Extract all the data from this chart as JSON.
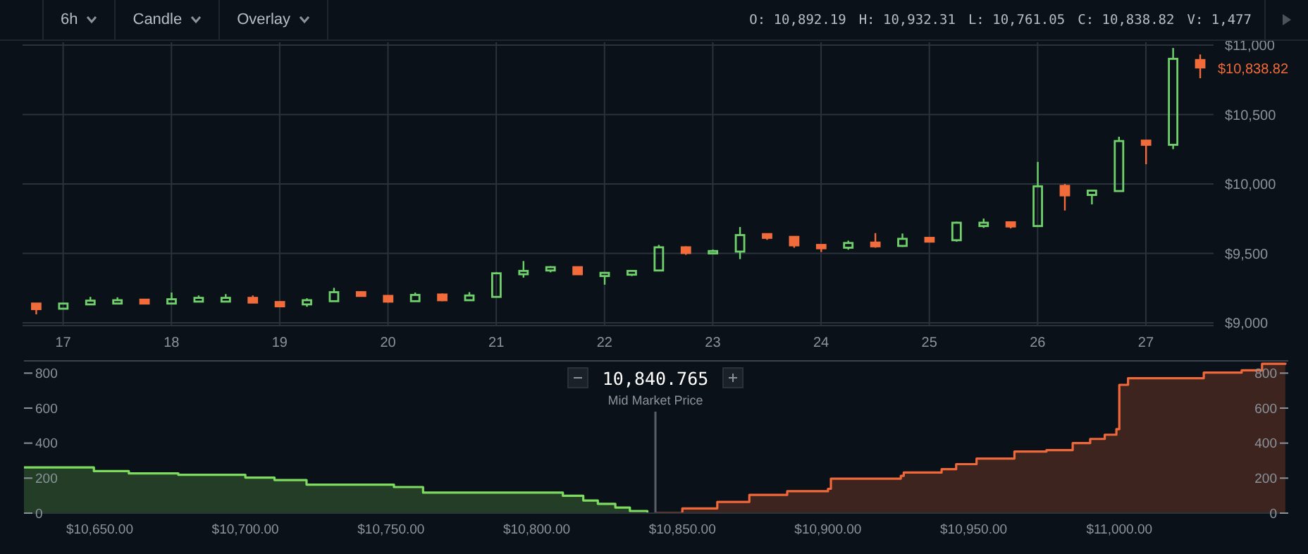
{
  "chart_data": [
    {
      "type": "candlestick",
      "categories": [
        null,
        "17",
        null,
        null,
        null,
        "18",
        null,
        null,
        null,
        "19",
        null,
        null,
        null,
        "20",
        null,
        null,
        null,
        "21",
        null,
        null,
        null,
        "22",
        null,
        null,
        null,
        "23",
        null,
        null,
        null,
        "24",
        null,
        null,
        null,
        "25",
        null,
        null,
        null,
        "26",
        null,
        null,
        null,
        "27",
        null,
        null
      ],
      "ohlc": [
        [
          9139,
          9139,
          9061,
          9099
        ],
        [
          9102,
          9139,
          9102,
          9139
        ],
        [
          9133,
          9187,
          9133,
          9160
        ],
        [
          9139,
          9184,
          9136,
          9163
        ],
        [
          9167,
          9170,
          9136,
          9139
        ],
        [
          9139,
          9218,
          9136,
          9170
        ],
        [
          9153,
          9197,
          9150,
          9180
        ],
        [
          9153,
          9207,
          9150,
          9180
        ],
        [
          9180,
          9197,
          9143,
          9146
        ],
        [
          9150,
          9153,
          9112,
          9119
        ],
        [
          9133,
          9177,
          9116,
          9163
        ],
        [
          9156,
          9252,
          9153,
          9221
        ],
        [
          9221,
          9228,
          9190,
          9194
        ],
        [
          9194,
          9197,
          9146,
          9153
        ],
        [
          9156,
          9218,
          9153,
          9201
        ],
        [
          9204,
          9211,
          9156,
          9163
        ],
        [
          9163,
          9221,
          9160,
          9197
        ],
        [
          9187,
          9364,
          9184,
          9357
        ],
        [
          9350,
          9445,
          9326,
          9374
        ],
        [
          9377,
          9408,
          9364,
          9401
        ],
        [
          9401,
          9404,
          9347,
          9350
        ],
        [
          9337,
          9364,
          9275,
          9360
        ],
        [
          9347,
          9381,
          9337,
          9374
        ],
        [
          9377,
          9561,
          9374,
          9544
        ],
        [
          9544,
          9551,
          9490,
          9503
        ],
        [
          9500,
          9527,
          9497,
          9517
        ],
        [
          9513,
          9690,
          9459,
          9632
        ],
        [
          9639,
          9642,
          9598,
          9612
        ],
        [
          9619,
          9622,
          9541,
          9558
        ],
        [
          9561,
          9564,
          9510,
          9537
        ],
        [
          9541,
          9592,
          9527,
          9575
        ],
        [
          9578,
          9646,
          9541,
          9551
        ],
        [
          9554,
          9643,
          9547,
          9605
        ],
        [
          9612,
          9615,
          9581,
          9585
        ],
        [
          9595,
          9728,
          9585,
          9721
        ],
        [
          9697,
          9751,
          9684,
          9721
        ],
        [
          9724,
          9728,
          9680,
          9694
        ],
        [
          9697,
          10159,
          9694,
          9983
        ],
        [
          9986,
          10000,
          9809,
          9918
        ],
        [
          9921,
          9955,
          9853,
          9952
        ],
        [
          9949,
          10340,
          9946,
          10309
        ],
        [
          10312,
          10316,
          10142,
          10282
        ],
        [
          10282,
          10979,
          10251,
          10901
        ],
        [
          10892.19,
          10932.31,
          10761.05,
          10838.82
        ]
      ],
      "colors": [
        "#f26b3a",
        "#6fd16b",
        "#6fd16b",
        "#6fd16b",
        "#f26b3a",
        "#6fd16b",
        "#6fd16b",
        "#6fd16b",
        "#f26b3a",
        "#f26b3a",
        "#6fd16b",
        "#6fd16b",
        "#f26b3a",
        "#f26b3a",
        "#6fd16b",
        "#f26b3a",
        "#6fd16b",
        "#6fd16b",
        "#6fd16b",
        "#6fd16b",
        "#f26b3a",
        "#6fd16b",
        "#6fd16b",
        "#6fd16b",
        "#f26b3a",
        "#6fd16b",
        "#6fd16b",
        "#f26b3a",
        "#f26b3a",
        "#f26b3a",
        "#6fd16b",
        "#f26b3a",
        "#6fd16b",
        "#f26b3a",
        "#6fd16b",
        "#6fd16b",
        "#f26b3a",
        "#6fd16b",
        "#f26b3a",
        "#6fd16b",
        "#6fd16b",
        "#f26b3a",
        "#6fd16b",
        "#f26b3a"
      ],
      "ylim": [
        8980,
        11020
      ],
      "yticks": [
        {
          "value": 9000,
          "label": "$9,000"
        },
        {
          "value": 9500,
          "label": "$9,500"
        },
        {
          "value": 10000,
          "label": "$10,000"
        },
        {
          "value": 10500,
          "label": "$10,500"
        },
        {
          "value": 11000,
          "label": "$11,000"
        }
      ],
      "grid": true,
      "annotations": [
        "6h",
        "Candle",
        "Overlay",
        "O: 10,892.19",
        "H: 10,932.31",
        "L: 10,761.05",
        "C: 10,838.82",
        "V: 1,477",
        "$10,838.82"
      ]
    },
    {
      "type": "step",
      "xlim": [
        10624,
        11058
      ],
      "xticks": [
        {
          "value": 10650,
          "label": "$10,650.00"
        },
        {
          "value": 10700,
          "label": "$10,700.00"
        },
        {
          "value": 10750,
          "label": "$10,750.00"
        },
        {
          "value": 10800,
          "label": "$10,800.00"
        },
        {
          "value": 10850,
          "label": "$10,850.00"
        },
        {
          "value": 10900,
          "label": "$10,900.00"
        },
        {
          "value": 10950,
          "label": "$10,950.00"
        },
        {
          "value": 11000,
          "label": "$11,000.00"
        }
      ],
      "ylim": [
        0,
        870
      ],
      "yticks": [
        0,
        200,
        400,
        600,
        800
      ],
      "y2lim": [
        0,
        870
      ],
      "y2ticks": [
        0,
        200,
        400,
        600,
        800
      ],
      "series": [
        {
          "color": "#7ddc5f",
          "x": [
            10624,
            10648,
            10660,
            10677,
            10700,
            10710,
            10721,
            10751,
            10761,
            10809,
            10816,
            10821,
            10827,
            10832,
            10838
          ],
          "values": [
            261,
            240,
            227,
            219,
            203,
            189,
            163,
            149,
            117,
            99,
            72,
            53,
            32,
            12,
            0
          ]
        },
        {
          "color": "#f0683a",
          "x": [
            10841,
            10850,
            10862,
            10873,
            10886,
            10900,
            10901,
            10925,
            10926,
            10939,
            10944,
            10951,
            10964,
            10975,
            10984,
            10990,
            10995,
            10999,
            11000,
            11003,
            11029,
            11042,
            11049,
            11057
          ],
          "values": [
            0,
            27,
            64,
            104,
            125,
            139,
            197,
            213,
            232,
            251,
            280,
            312,
            352,
            360,
            400,
            424,
            448,
            480,
            733,
            771,
            803,
            816,
            853,
            859
          ]
        }
      ],
      "ref_lines": [
        {
          "axis": "x",
          "value": 10840.765,
          "label": "10,840.765",
          "color": "#5a6068"
        }
      ],
      "annotations": [
        "Mid Market Price"
      ]
    }
  ]
}
